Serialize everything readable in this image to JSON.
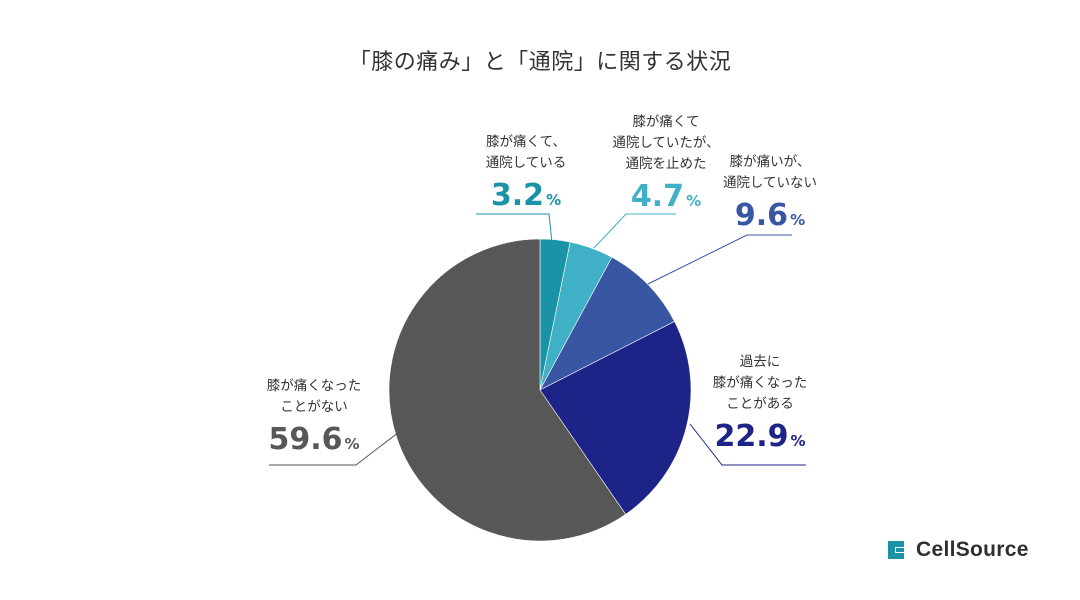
{
  "chart_data": {
    "type": "pie",
    "title": "「膝の痛み」と「通院」に関する状況",
    "unit": "%",
    "slices": [
      {
        "lines": [
          "膝が痛くて、",
          "通院している"
        ],
        "value": 3.2,
        "color": "#1b93a6"
      },
      {
        "lines": [
          "膝が痛くて",
          "通院していたが、",
          "通院を止めた"
        ],
        "value": 4.7,
        "color": "#3fb0c5"
      },
      {
        "lines": [
          "膝が痛いが、",
          "通院していない"
        ],
        "value": 9.6,
        "color": "#3956a3"
      },
      {
        "lines": [
          "過去に",
          "膝が痛くなった",
          "ことがある"
        ],
        "value": 22.9,
        "color": "#1e2388"
      },
      {
        "lines": [
          "膝が痛くなった",
          "ことがない"
        ],
        "value": 59.6,
        "color": "#585758"
      }
    ],
    "start_angle_deg": 0,
    "direction": "clockwise"
  },
  "brand": {
    "name": "CellSource",
    "logo_icon": "cellsource-logo-icon",
    "logo_color": "#1b93a6"
  }
}
